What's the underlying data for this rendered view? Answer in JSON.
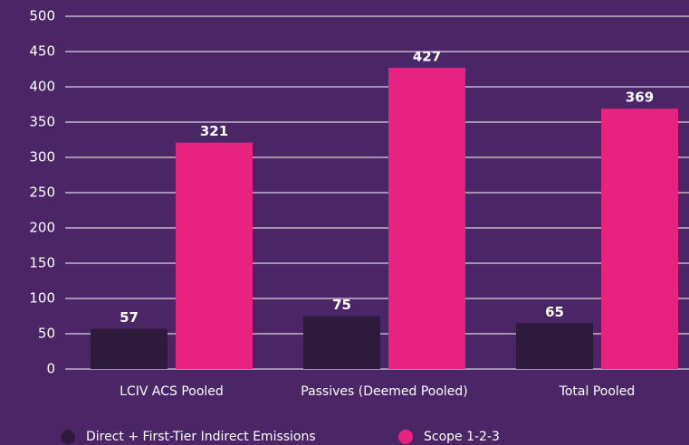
{
  "chart_data": {
    "type": "bar",
    "categories": [
      "LCIV ACS Pooled",
      "Passives (Deemed Pooled)",
      "Total Pooled"
    ],
    "series": [
      {
        "name": "Direct + First-Tier Indirect Emissions",
        "color": "#2e1a3c",
        "values": [
          57,
          75,
          65
        ]
      },
      {
        "name": "Scope 1-2-3",
        "color": "#e8237f",
        "values": [
          321,
          427,
          369
        ]
      }
    ],
    "ylim": [
      0,
      500
    ],
    "yticks": [
      0,
      50,
      100,
      150,
      200,
      250,
      300,
      350,
      400,
      450,
      500
    ],
    "grid": true,
    "legend": "bottom"
  }
}
